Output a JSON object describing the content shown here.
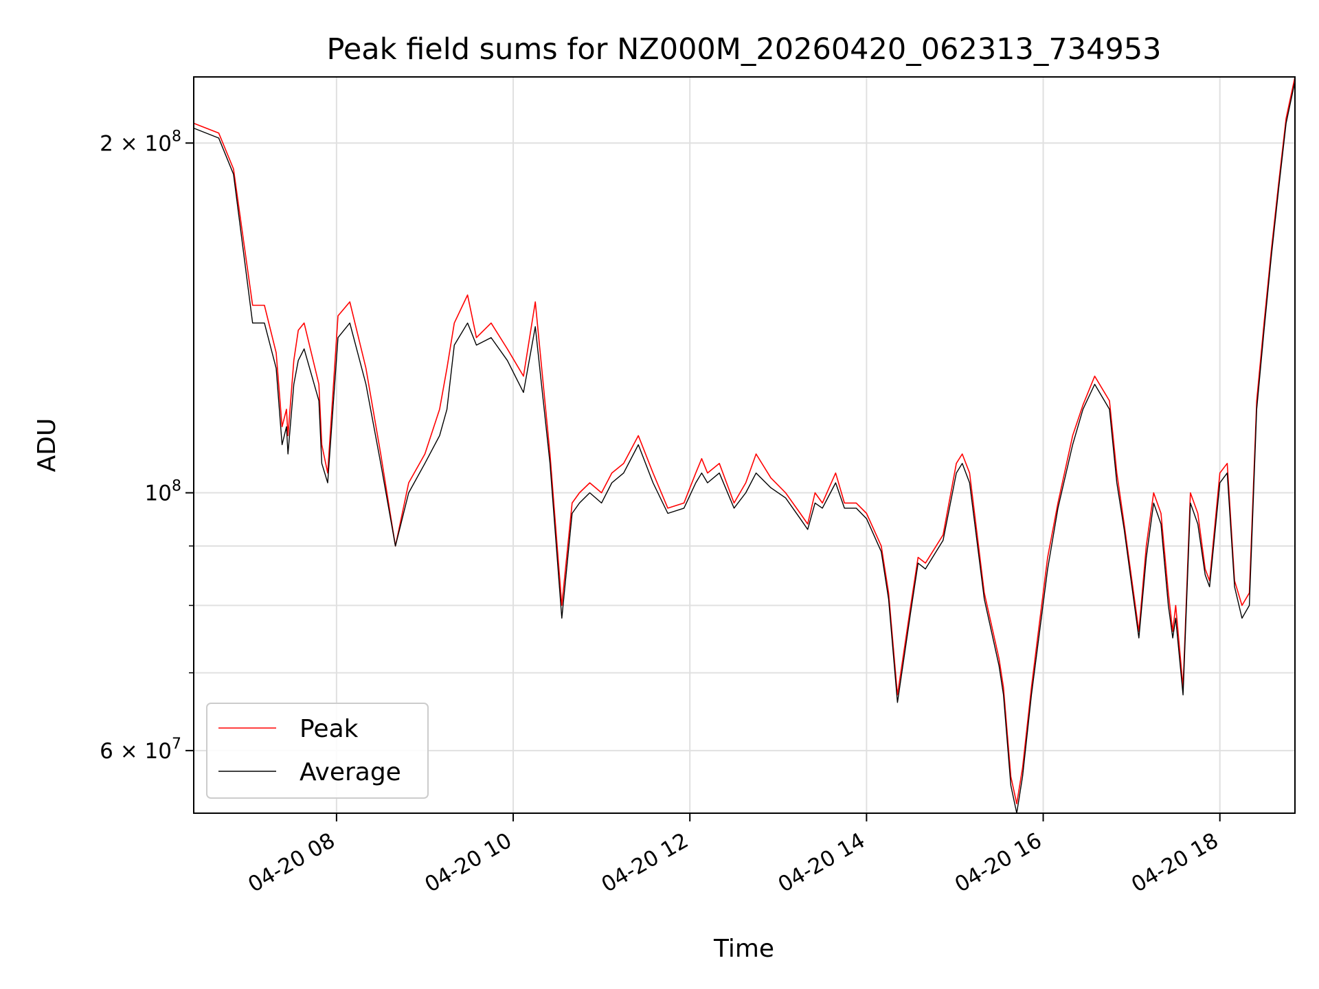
{
  "chart_data": {
    "type": "line",
    "title": "Peak field sums for NZ000M_20260420_062313_734953",
    "xlabel": "Time",
    "ylabel": "ADU",
    "yscale": "log",
    "ylim": [
      53000000,
      228000000
    ],
    "xlim": [
      "2026-04-20 06:23",
      "2026-04-20 18:51"
    ],
    "grid": true,
    "legend_position": "lower-left",
    "x_ticks": [
      {
        "value": "2026-04-20 08:00",
        "label": "04-20 08"
      },
      {
        "value": "2026-04-20 10:00",
        "label": "04-20 10"
      },
      {
        "value": "2026-04-20 12:00",
        "label": "04-20 12"
      },
      {
        "value": "2026-04-20 14:00",
        "label": "04-20 14"
      },
      {
        "value": "2026-04-20 16:00",
        "label": "04-20 16"
      },
      {
        "value": "2026-04-20 18:00",
        "label": "04-20 18"
      }
    ],
    "y_major_ticks": [
      {
        "value": 60000000,
        "mantissa": "6",
        "exponent": "7"
      },
      {
        "value": 100000000,
        "mantissa": "",
        "exponent": "8"
      },
      {
        "value": 200000000,
        "mantissa": "2",
        "exponent": "8"
      }
    ],
    "y_minor_ticks": [
      60000000,
      70000000,
      80000000,
      90000000,
      200000000
    ],
    "series": [
      {
        "name": "Peak",
        "color": "#ff0000",
        "x": [
          "2026-04-20 06:23",
          "2026-04-20 06:40",
          "2026-04-20 06:50",
          "2026-04-20 07:03",
          "2026-04-20 07:11",
          "2026-04-20 07:19",
          "2026-04-20 07:23",
          "2026-04-20 07:26",
          "2026-04-20 07:27",
          "2026-04-20 07:31",
          "2026-04-20 07:34",
          "2026-04-20 07:38",
          "2026-04-20 07:48",
          "2026-04-20 07:50",
          "2026-04-20 07:54",
          "2026-04-20 08:01",
          "2026-04-20 08:09",
          "2026-04-20 08:20",
          "2026-04-20 08:30",
          "2026-04-20 08:40",
          "2026-04-20 08:49",
          "2026-04-20 09:00",
          "2026-04-20 09:10",
          "2026-04-20 09:15",
          "2026-04-20 09:20",
          "2026-04-20 09:29",
          "2026-04-20 09:35",
          "2026-04-20 09:45",
          "2026-04-20 09:56",
          "2026-04-20 10:07",
          "2026-04-20 10:15",
          "2026-04-20 10:25",
          "2026-04-20 10:33",
          "2026-04-20 10:40",
          "2026-04-20 10:45",
          "2026-04-20 10:52",
          "2026-04-20 11:00",
          "2026-04-20 11:07",
          "2026-04-20 11:15",
          "2026-04-20 11:25",
          "2026-04-20 11:35",
          "2026-04-20 11:45",
          "2026-04-20 11:56",
          "2026-04-20 12:04",
          "2026-04-20 12:08",
          "2026-04-20 12:12",
          "2026-04-20 12:20",
          "2026-04-20 12:30",
          "2026-04-20 12:38",
          "2026-04-20 12:45",
          "2026-04-20 12:55",
          "2026-04-20 13:05",
          "2026-04-20 13:15",
          "2026-04-20 13:20",
          "2026-04-20 13:25",
          "2026-04-20 13:30",
          "2026-04-20 13:39",
          "2026-04-20 13:45",
          "2026-04-20 13:53",
          "2026-04-20 14:00",
          "2026-04-20 14:10",
          "2026-04-20 14:15",
          "2026-04-20 14:21",
          "2026-04-20 14:30",
          "2026-04-20 14:35",
          "2026-04-20 14:40",
          "2026-04-20 14:52",
          "2026-04-20 15:01",
          "2026-04-20 15:05",
          "2026-04-20 15:10",
          "2026-04-20 15:20",
          "2026-04-20 15:30",
          "2026-04-20 15:33",
          "2026-04-20 15:38",
          "2026-04-20 15:42",
          "2026-04-20 15:46",
          "2026-04-20 15:52",
          "2026-04-20 16:03",
          "2026-04-20 16:10",
          "2026-04-20 16:20",
          "2026-04-20 16:27",
          "2026-04-20 16:35",
          "2026-04-20 16:45",
          "2026-04-20 16:50",
          "2026-04-20 16:55",
          "2026-04-20 17:05",
          "2026-04-20 17:10",
          "2026-04-20 17:15",
          "2026-04-20 17:20",
          "2026-04-20 17:25",
          "2026-04-20 17:28",
          "2026-04-20 17:30",
          "2026-04-20 17:35",
          "2026-04-20 17:40",
          "2026-04-20 17:45",
          "2026-04-20 17:50",
          "2026-04-20 17:53",
          "2026-04-20 18:00",
          "2026-04-20 18:05",
          "2026-04-20 18:10",
          "2026-04-20 18:15",
          "2026-04-20 18:20",
          "2026-04-20 18:25",
          "2026-04-20 18:30",
          "2026-04-20 18:35",
          "2026-04-20 18:40",
          "2026-04-20 18:45",
          "2026-04-20 18:51"
        ],
        "values": [
          208000000,
          204000000,
          190000000,
          145000000,
          145000000,
          132000000,
          114000000,
          118000000,
          112000000,
          130000000,
          138000000,
          140000000,
          124000000,
          110000000,
          104000000,
          142000000,
          146000000,
          128000000,
          108000000,
          90000000,
          102000000,
          108000000,
          118000000,
          128000000,
          140000000,
          148000000,
          136000000,
          140000000,
          133000000,
          126000000,
          146000000,
          108000000,
          80000000,
          98000000,
          100000000,
          102000000,
          100000000,
          104000000,
          106000000,
          112000000,
          104000000,
          97000000,
          98000000,
          104000000,
          107000000,
          104000000,
          106000000,
          98000000,
          102000000,
          108000000,
          103000000,
          100000000,
          96000000,
          94000000,
          100000000,
          98000000,
          104000000,
          98000000,
          98000000,
          96000000,
          90000000,
          82000000,
          67000000,
          80000000,
          88000000,
          87000000,
          92000000,
          106000000,
          108000000,
          104000000,
          82000000,
          72000000,
          68000000,
          57000000,
          54000000,
          58000000,
          68000000,
          88000000,
          98000000,
          112000000,
          119000000,
          126000000,
          120000000,
          104000000,
          94000000,
          76000000,
          90000000,
          100000000,
          96000000,
          82000000,
          76000000,
          80000000,
          68000000,
          100000000,
          96000000,
          86000000,
          84000000,
          104000000,
          106000000,
          84000000,
          80000000,
          82000000,
          120000000,
          140000000,
          162000000,
          185000000,
          210000000,
          228000000
        ]
      },
      {
        "name": "Average",
        "color": "#000000",
        "x": [
          "2026-04-20 06:23",
          "2026-04-20 06:40",
          "2026-04-20 06:50",
          "2026-04-20 07:03",
          "2026-04-20 07:11",
          "2026-04-20 07:19",
          "2026-04-20 07:23",
          "2026-04-20 07:26",
          "2026-04-20 07:27",
          "2026-04-20 07:31",
          "2026-04-20 07:34",
          "2026-04-20 07:38",
          "2026-04-20 07:48",
          "2026-04-20 07:50",
          "2026-04-20 07:54",
          "2026-04-20 08:01",
          "2026-04-20 08:09",
          "2026-04-20 08:20",
          "2026-04-20 08:30",
          "2026-04-20 08:40",
          "2026-04-20 08:49",
          "2026-04-20 09:00",
          "2026-04-20 09:10",
          "2026-04-20 09:15",
          "2026-04-20 09:20",
          "2026-04-20 09:29",
          "2026-04-20 09:35",
          "2026-04-20 09:45",
          "2026-04-20 09:56",
          "2026-04-20 10:07",
          "2026-04-20 10:15",
          "2026-04-20 10:25",
          "2026-04-20 10:33",
          "2026-04-20 10:40",
          "2026-04-20 10:45",
          "2026-04-20 10:52",
          "2026-04-20 11:00",
          "2026-04-20 11:07",
          "2026-04-20 11:15",
          "2026-04-20 11:25",
          "2026-04-20 11:35",
          "2026-04-20 11:45",
          "2026-04-20 11:56",
          "2026-04-20 12:04",
          "2026-04-20 12:08",
          "2026-04-20 12:12",
          "2026-04-20 12:20",
          "2026-04-20 12:30",
          "2026-04-20 12:38",
          "2026-04-20 12:45",
          "2026-04-20 12:55",
          "2026-04-20 13:05",
          "2026-04-20 13:15",
          "2026-04-20 13:20",
          "2026-04-20 13:25",
          "2026-04-20 13:30",
          "2026-04-20 13:39",
          "2026-04-20 13:45",
          "2026-04-20 13:53",
          "2026-04-20 14:00",
          "2026-04-20 14:10",
          "2026-04-20 14:15",
          "2026-04-20 14:21",
          "2026-04-20 14:30",
          "2026-04-20 14:35",
          "2026-04-20 14:40",
          "2026-04-20 14:52",
          "2026-04-20 15:01",
          "2026-04-20 15:05",
          "2026-04-20 15:10",
          "2026-04-20 15:20",
          "2026-04-20 15:30",
          "2026-04-20 15:33",
          "2026-04-20 15:38",
          "2026-04-20 15:42",
          "2026-04-20 15:46",
          "2026-04-20 15:52",
          "2026-04-20 16:03",
          "2026-04-20 16:10",
          "2026-04-20 16:20",
          "2026-04-20 16:27",
          "2026-04-20 16:35",
          "2026-04-20 16:45",
          "2026-04-20 16:50",
          "2026-04-20 16:55",
          "2026-04-20 17:05",
          "2026-04-20 17:10",
          "2026-04-20 17:15",
          "2026-04-20 17:20",
          "2026-04-20 17:25",
          "2026-04-20 17:28",
          "2026-04-20 17:30",
          "2026-04-20 17:35",
          "2026-04-20 17:40",
          "2026-04-20 17:45",
          "2026-04-20 17:50",
          "2026-04-20 17:53",
          "2026-04-20 18:00",
          "2026-04-20 18:05",
          "2026-04-20 18:10",
          "2026-04-20 18:15",
          "2026-04-20 18:20",
          "2026-04-20 18:25",
          "2026-04-20 18:30",
          "2026-04-20 18:35",
          "2026-04-20 18:40",
          "2026-04-20 18:45",
          "2026-04-20 18:51"
        ],
        "values": [
          206000000,
          202000000,
          188000000,
          140000000,
          140000000,
          128000000,
          110000000,
          114000000,
          108000000,
          124000000,
          130000000,
          133000000,
          120000000,
          106000000,
          102000000,
          136000000,
          140000000,
          124000000,
          106000000,
          90000000,
          100000000,
          106000000,
          112000000,
          118000000,
          134000000,
          140000000,
          134000000,
          136000000,
          130000000,
          122000000,
          139000000,
          106000000,
          78000000,
          96000000,
          98000000,
          100000000,
          98000000,
          102000000,
          104000000,
          110000000,
          102000000,
          96000000,
          97000000,
          102000000,
          104000000,
          102000000,
          104000000,
          97000000,
          100000000,
          104000000,
          101000000,
          99000000,
          95000000,
          93000000,
          98000000,
          97000000,
          102000000,
          97000000,
          97000000,
          95000000,
          89000000,
          81000000,
          66000000,
          79000000,
          87000000,
          86000000,
          91000000,
          104000000,
          106000000,
          102000000,
          81000000,
          71000000,
          67000000,
          56000000,
          53000000,
          57000000,
          67000000,
          86000000,
          97000000,
          110000000,
          118000000,
          124000000,
          118000000,
          102000000,
          93000000,
          75000000,
          88000000,
          98000000,
          94000000,
          80000000,
          75000000,
          78000000,
          67000000,
          98000000,
          94000000,
          85000000,
          83000000,
          102000000,
          104000000,
          83000000,
          78000000,
          80000000,
          118000000,
          138000000,
          160000000,
          183000000,
          208000000,
          226000000
        ]
      }
    ]
  }
}
